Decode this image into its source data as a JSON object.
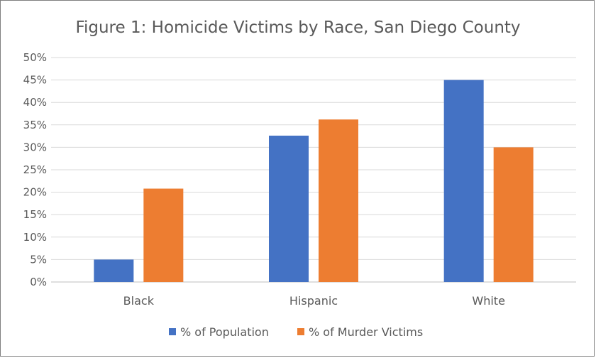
{
  "chart_data": {
    "type": "bar",
    "title": "Figure 1: Homicide Victims by Race, San Diego County",
    "xlabel": "",
    "ylabel": "",
    "categories": [
      "Black",
      "Hispanic",
      "White"
    ],
    "series": [
      {
        "name": "% of Population",
        "values": [
          5,
          32.6,
          45
        ],
        "color": "#4472c4"
      },
      {
        "name": "% of Murder Victims",
        "values": [
          20.8,
          36.2,
          30
        ],
        "color": "#ed7d31"
      }
    ],
    "ylim": [
      0,
      50
    ],
    "yticks": [
      "0%",
      "5%",
      "10%",
      "15%",
      "20%",
      "25%",
      "30%",
      "35%",
      "40%",
      "45%",
      "50%"
    ],
    "grid": true,
    "legend_position": "bottom"
  }
}
